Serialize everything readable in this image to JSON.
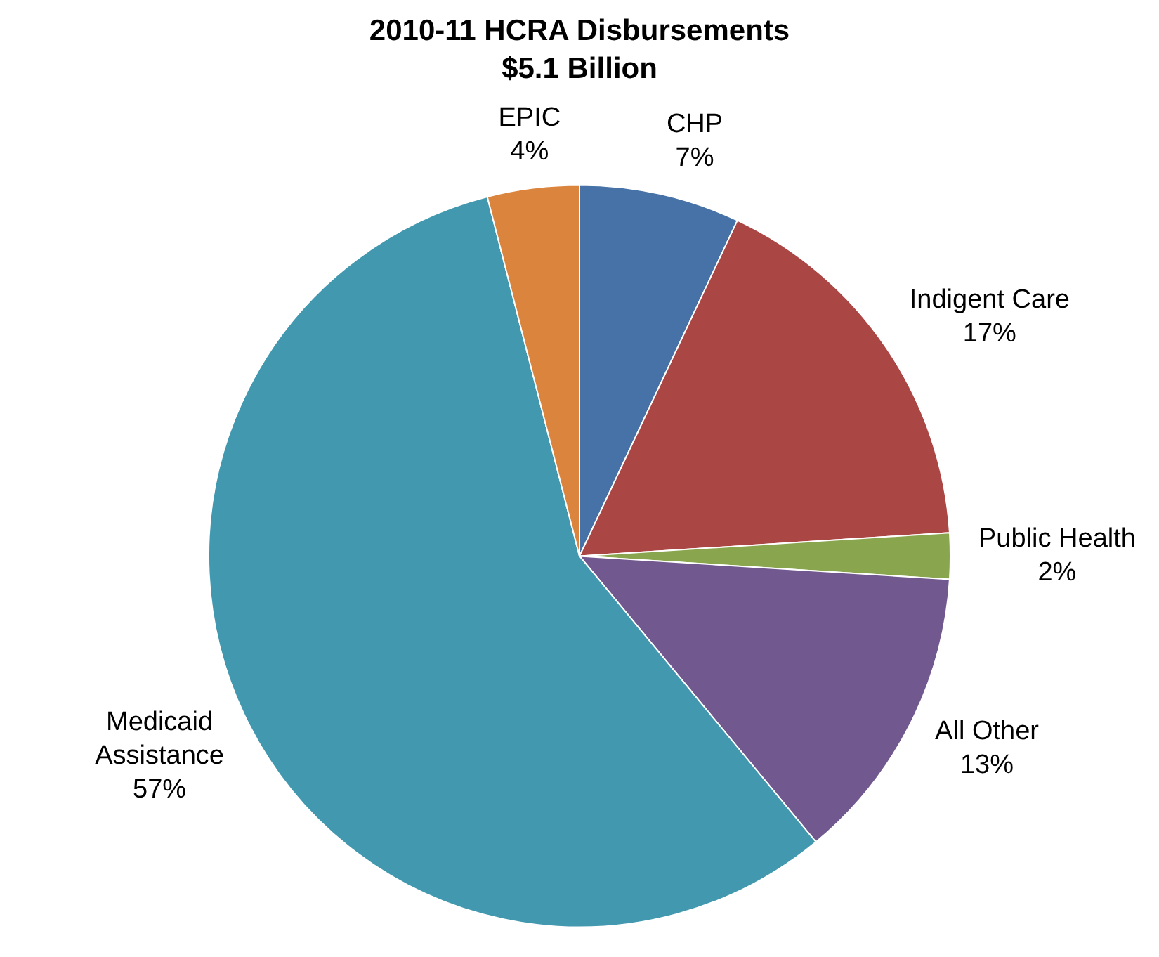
{
  "chart_data": {
    "type": "pie",
    "title": "2010-11 HCRA Disbursements",
    "subtitle": "$5.1 Billion",
    "categories": [
      "CHP",
      "Indigent Care",
      "Public Health",
      "All Other",
      "Medicaid Assistance",
      "EPIC"
    ],
    "values": [
      7,
      17,
      2,
      13,
      57,
      4
    ],
    "colors": [
      "#4672a8",
      "#aa4644",
      "#89a54e",
      "#71588f",
      "#4198af",
      "#db843d"
    ],
    "value_labels": [
      "7%",
      "17%",
      "2%",
      "13%",
      "57%",
      "4%"
    ],
    "legend": false
  }
}
